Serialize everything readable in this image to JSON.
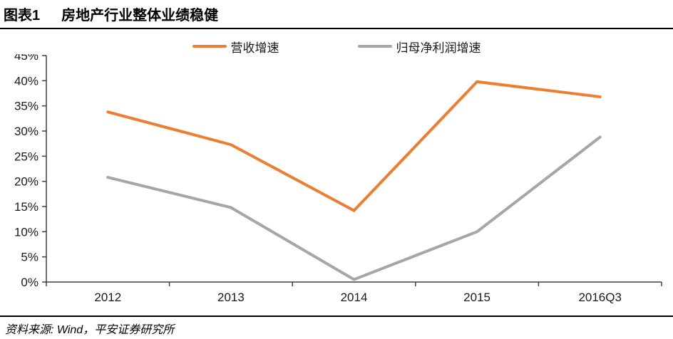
{
  "figure": {
    "label": "图表1",
    "title": "房地产行业整体业绩稳健",
    "source": "资料来源: Wind，平安证券研究所"
  },
  "chart_data": {
    "type": "line",
    "categories": [
      "2012",
      "2013",
      "2014",
      "2015",
      "2016Q3"
    ],
    "series": [
      {
        "name": "营收增速",
        "color": "#ED7D31",
        "values": [
          33.8,
          27.3,
          14.2,
          39.8,
          36.8
        ]
      },
      {
        "name": "归母净利润增速",
        "color": "#A6A6A6",
        "values": [
          20.8,
          14.8,
          0.5,
          10.0,
          28.8
        ]
      }
    ],
    "title": "",
    "xlabel": "",
    "ylabel": "",
    "ylim": [
      0,
      45
    ],
    "ytick_step": 5,
    "ytick_labels": [
      "0%",
      "5%",
      "10%",
      "15%",
      "20%",
      "25%",
      "30%",
      "35%",
      "40%",
      "45%"
    ],
    "grid": false,
    "legend_position": "top-center",
    "axis_color": "#404040"
  }
}
